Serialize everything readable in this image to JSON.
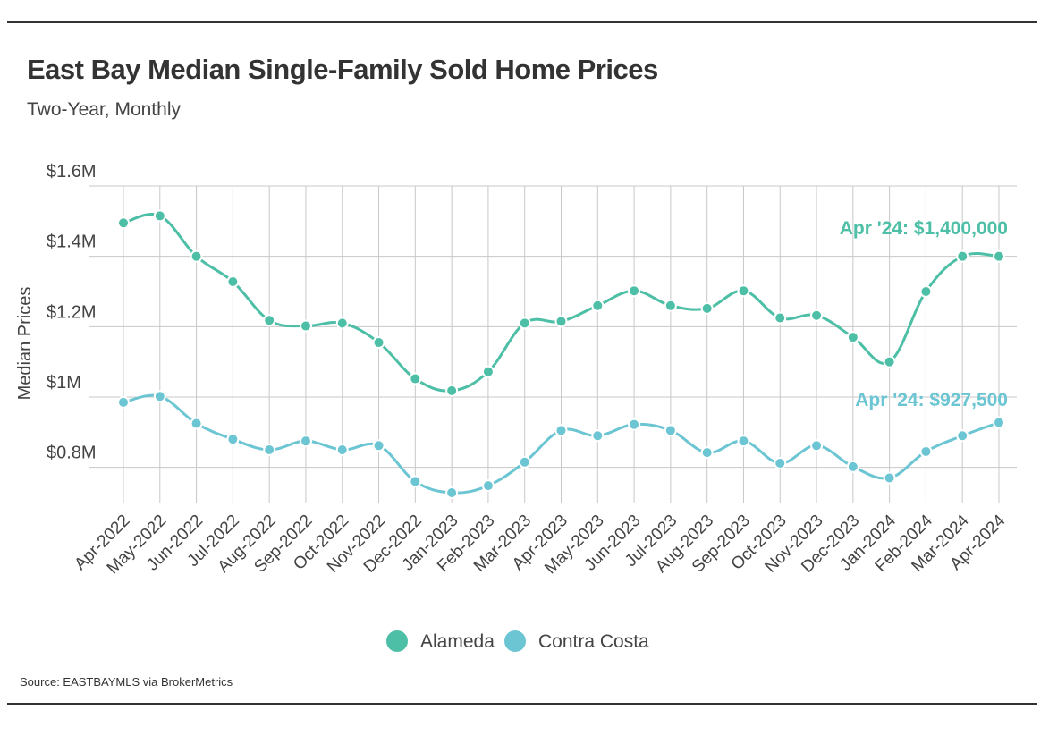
{
  "header": {
    "title": "East Bay Median Single-Family Sold Home Prices",
    "subtitle": "Two-Year, Monthly"
  },
  "footer": {
    "source": "Source:  EASTBAYMLS via BrokerMetrics"
  },
  "chart_data": {
    "type": "line",
    "title": "East Bay Median Single-Family Sold Home Prices",
    "subtitle": "Two-Year, Monthly",
    "xlabel": "",
    "ylabel": "Median Prices",
    "ylim": [
      700000,
      1600000
    ],
    "yticks": [
      800000,
      1000000,
      1200000,
      1400000,
      1600000
    ],
    "ytick_labels": [
      "$0.8M",
      "$1M",
      "$1.2M",
      "$1.4M",
      "$1.6M"
    ],
    "grid": true,
    "legend_position": "bottom-center",
    "categories": [
      "Apr-2022",
      "May-2022",
      "Jun-2022",
      "Jul-2022",
      "Aug-2022",
      "Sep-2022",
      "Oct-2022",
      "Nov-2022",
      "Dec-2022",
      "Jan-2023",
      "Feb-2023",
      "Mar-2023",
      "Apr-2023",
      "May-2023",
      "Jun-2023",
      "Jul-2023",
      "Aug-2023",
      "Sep-2023",
      "Oct-2023",
      "Nov-2023",
      "Dec-2023",
      "Jan-2024",
      "Feb-2024",
      "Mar-2024",
      "Apr-2024"
    ],
    "series": [
      {
        "name": "Alameda",
        "color": "#4dbfa6",
        "values": [
          1495000,
          1515000,
          1400000,
          1328000,
          1218000,
          1202000,
          1210000,
          1155000,
          1052000,
          1018000,
          1072000,
          1210000,
          1215000,
          1260000,
          1302000,
          1260000,
          1252000,
          1302000,
          1225000,
          1232000,
          1170000,
          1100000,
          1300000,
          1400000,
          1400000
        ],
        "annotation": "Apr '24: $1,400,000"
      },
      {
        "name": "Contra Costa",
        "color": "#6cc5d3",
        "values": [
          985000,
          1002000,
          925000,
          880000,
          850000,
          875000,
          850000,
          862000,
          760000,
          728000,
          748000,
          815000,
          905000,
          890000,
          922000,
          905000,
          842000,
          875000,
          812000,
          862000,
          802000,
          770000,
          845000,
          890000,
          927500
        ],
        "annotation": "Apr '24: $927,500"
      }
    ]
  }
}
